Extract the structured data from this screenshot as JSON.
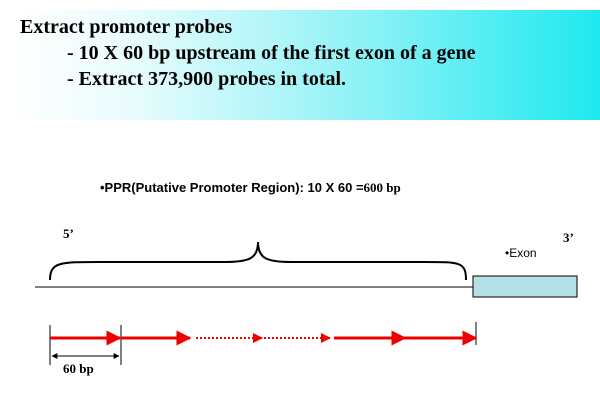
{
  "banner": {
    "title": "Extract promoter probes",
    "bullets": [
      "- 10 X 60 bp upstream of the first exon of a gene",
      "- Extract 373,900 probes in total."
    ]
  },
  "diagram": {
    "ppr_prefix": "•PPR(Putative Promoter Region): 10 X 60 =",
    "ppr_suffix": "600 bp",
    "five_prime": "5’",
    "three_prime": "3’",
    "exon_label": "•Exon",
    "probe_length_label": "60 bp",
    "colors": {
      "arrow": "#ee0000",
      "exon_fill": "#b4e0e6",
      "banner_accent": "#1ee9ef"
    }
  }
}
